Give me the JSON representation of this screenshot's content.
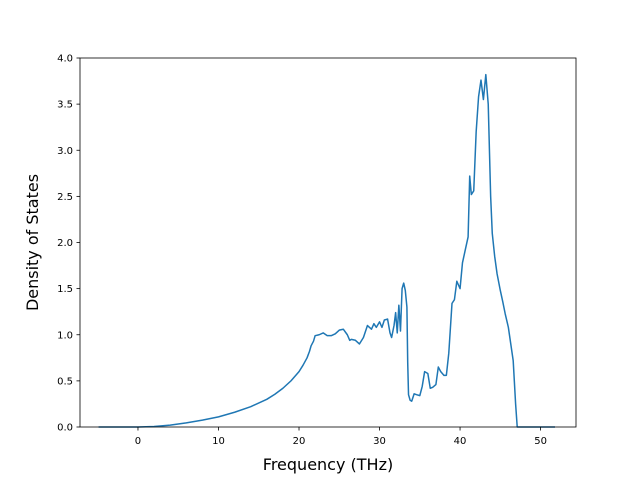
{
  "chart_data": {
    "type": "line",
    "title": "",
    "xlabel": "Frequency (THz)",
    "ylabel": "Density of States",
    "xlim": [
      -7.2,
      54.4
    ],
    "ylim": [
      0.0,
      4.0
    ],
    "xticks": [
      0,
      10,
      20,
      30,
      40,
      50
    ],
    "yticks": [
      0.0,
      0.5,
      1.0,
      1.5,
      2.0,
      2.5,
      3.0,
      3.5,
      4.0
    ],
    "xtick_labels": [
      "0",
      "10",
      "20",
      "30",
      "40",
      "50"
    ],
    "ytick_labels": [
      "0.0",
      "0.5",
      "1.0",
      "1.5",
      "2.0",
      "2.5",
      "3.0",
      "3.5",
      "4.0"
    ],
    "grid": false,
    "legend": "none",
    "series": [
      {
        "color": "#1f77b4",
        "x": [
          -4.8,
          -2.0,
          0.0,
          2.0,
          4.0,
          6.0,
          8.0,
          10.0,
          12.0,
          14.0,
          16.0,
          17.0,
          18.0,
          19.0,
          20.0,
          20.5,
          21.0,
          21.3,
          21.5,
          21.8,
          22.0,
          22.5,
          23.0,
          23.5,
          24.0,
          24.5,
          25.0,
          25.5,
          26.0,
          26.3,
          26.5,
          27.0,
          27.5,
          28.0,
          28.5,
          29.0,
          29.3,
          29.6,
          30.0,
          30.3,
          30.6,
          31.0,
          31.3,
          31.5,
          31.8,
          32.0,
          32.2,
          32.4,
          32.6,
          32.8,
          33.0,
          33.2,
          33.4,
          33.5,
          33.6,
          33.8,
          34.0,
          34.3,
          34.6,
          35.0,
          35.3,
          35.6,
          36.0,
          36.3,
          36.6,
          37.0,
          37.3,
          37.6,
          38.0,
          38.3,
          38.6,
          39.0,
          39.3,
          39.6,
          40.0,
          40.3,
          40.6,
          41.0,
          41.2,
          41.4,
          41.7,
          42.0,
          42.3,
          42.6,
          42.9,
          43.2,
          43.5,
          43.8,
          44.0,
          44.3,
          44.6,
          45.0,
          45.3,
          45.6,
          46.0,
          46.3,
          46.6,
          46.9,
          47.1,
          47.3,
          48.0,
          50.0,
          51.7
        ],
        "y": [
          0.0,
          0.0,
          0.0,
          0.005,
          0.02,
          0.045,
          0.075,
          0.11,
          0.16,
          0.22,
          0.3,
          0.355,
          0.42,
          0.5,
          0.6,
          0.67,
          0.75,
          0.82,
          0.88,
          0.93,
          0.99,
          1.0,
          1.02,
          0.99,
          0.99,
          1.01,
          1.05,
          1.06,
          1.0,
          0.94,
          0.95,
          0.94,
          0.9,
          0.97,
          1.1,
          1.06,
          1.12,
          1.08,
          1.14,
          1.08,
          1.16,
          1.17,
          1.02,
          0.97,
          1.1,
          1.24,
          1.02,
          1.32,
          1.04,
          1.5,
          1.56,
          1.48,
          1.3,
          0.7,
          0.35,
          0.29,
          0.28,
          0.36,
          0.35,
          0.34,
          0.44,
          0.6,
          0.58,
          0.42,
          0.43,
          0.46,
          0.65,
          0.6,
          0.56,
          0.56,
          0.8,
          1.34,
          1.38,
          1.58,
          1.5,
          1.78,
          1.9,
          2.06,
          2.72,
          2.52,
          2.56,
          3.2,
          3.58,
          3.76,
          3.55,
          3.82,
          3.5,
          2.5,
          2.1,
          1.85,
          1.66,
          1.48,
          1.36,
          1.23,
          1.08,
          0.9,
          0.72,
          0.25,
          0.0,
          0.0,
          0.0,
          0.0,
          0.0
        ]
      }
    ]
  }
}
